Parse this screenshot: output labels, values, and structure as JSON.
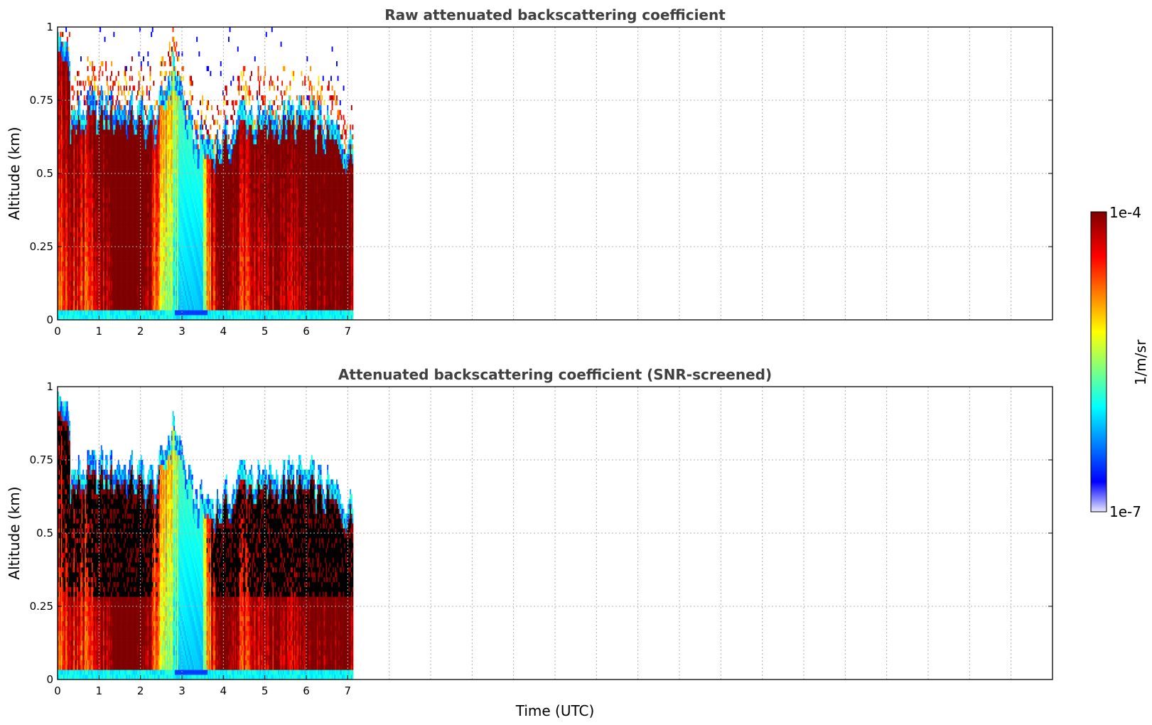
{
  "chart_data": [
    {
      "type": "heatmap",
      "title": "Raw attenuated backscattering coefficient",
      "xlabel": "",
      "ylabel": "Altitude (km)",
      "xlim": [
        0,
        24
      ],
      "ylim": [
        0,
        1
      ],
      "xticks": [
        0,
        1,
        2,
        3,
        4,
        5,
        6,
        7
      ],
      "yticks": [
        "0",
        "0.25",
        "0.5",
        "0.75",
        "1"
      ],
      "data_end_time": 7.15,
      "grid": true,
      "screened": false
    },
    {
      "type": "heatmap",
      "title": "Attenuated backscattering coefficient (SNR-screened)",
      "xlabel": "Time (UTC)",
      "ylabel": "Altitude (km)",
      "xlim": [
        0,
        24
      ],
      "ylim": [
        0,
        1
      ],
      "xticks": [
        0,
        1,
        2,
        3,
        4,
        5,
        6,
        7
      ],
      "yticks": [
        "0",
        "0.25",
        "0.5",
        "0.75",
        "1"
      ],
      "data_end_time": 7.15,
      "grid": true,
      "screened": true
    }
  ],
  "colorbar": {
    "label": "1/m/sr",
    "max_label": "1e-4",
    "min_label": "1e-7",
    "colormap": [
      "#e8e8ff",
      "#0000ff",
      "#00ffff",
      "#ffff00",
      "#ff0000",
      "#7f0000"
    ]
  }
}
